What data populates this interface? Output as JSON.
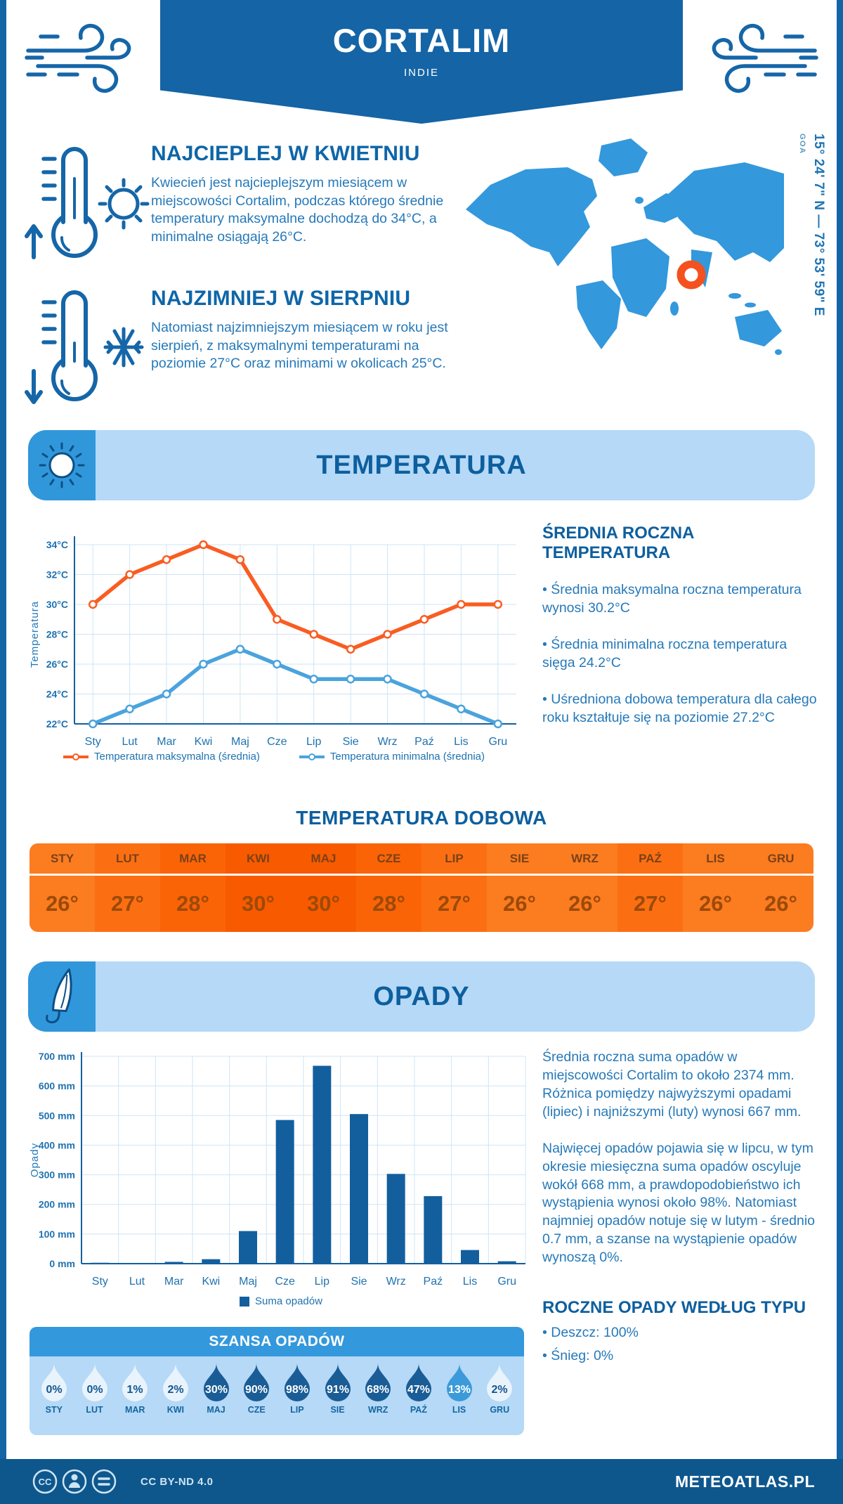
{
  "header": {
    "title": "CORTALIM",
    "subtitle": "INDIE"
  },
  "location": {
    "coordinates": "15° 24' 7\" N — 73° 53' 59\" E",
    "region": "GOA"
  },
  "palette": {
    "primary_blue": "#1464a6",
    "medium_blue": "#3398dc",
    "light_blue_panel": "#b5d9f7",
    "heading_blue": "#0e66a8",
    "body_blue": "#2579b9",
    "accent_orange": "#f95d22",
    "bar_blue": "#135f9e",
    "footer_blue": "#0e578d"
  },
  "icons": [
    "wind-icon",
    "thermometer-up-icon",
    "sun-icon",
    "thermometer-down-icon",
    "snowflake-icon",
    "umbrella-icon",
    "location-marker-icon",
    "cc-icon",
    "person-icon",
    "equals-icon"
  ],
  "highlights": [
    {
      "title": "NAJCIEPLEJ W KWIETNIU",
      "text": "Kwiecień jest najcieplejszym miesiącem w miejscowości Cortalim, podczas którego średnie temperatury maksymalne dochodzą do 34°C, a minimalne osiągają 26°C."
    },
    {
      "title": "NAJZIMNIEJ W SIERPNIU",
      "text": "Natomiast najzimniejszym miesiącem w roku jest sierpień, z maksymalnymi temperaturami na poziomie 27°C oraz minimami w okolicach 25°C."
    }
  ],
  "temperature": {
    "section_title": "TEMPERATURA",
    "summary_title": "ŚREDNIA ROCZNA TEMPERATURA",
    "bullets": [
      "• Średnia maksymalna roczna temperatura wynosi 30.2°C",
      "• Średnia minimalna roczna temperatura sięga 24.2°C",
      "• Uśredniona dobowa temperatura dla całego roku kształtuje się na poziomie 27.2°C"
    ],
    "daily_title": "TEMPERATURA DOBOWA",
    "daily_table": {
      "months": [
        "STY",
        "LUT",
        "MAR",
        "KWI",
        "MAJ",
        "CZE",
        "LIP",
        "SIE",
        "WRZ",
        "PAŹ",
        "LIS",
        "GRU"
      ],
      "values": [
        "26°",
        "27°",
        "28°",
        "30°",
        "30°",
        "28°",
        "27°",
        "26°",
        "26°",
        "27°",
        "26°",
        "26°"
      ],
      "cell_colors": [
        "#fc7c20",
        "#fb6f12",
        "#fa6407",
        "#f85a00",
        "#f85a00",
        "#fa6407",
        "#fb6f12",
        "#fc7c20",
        "#fc7c20",
        "#fb6f12",
        "#fc7c20",
        "#fc7c20"
      ]
    }
  },
  "precipitation": {
    "section_title": "OPADY",
    "paragraphs": [
      "Średnia roczna suma opadów w miejscowości Cortalim to około 2374 mm. Różnica pomiędzy najwyższymi opadami (lipiec) i najniższymi (luty) wynosi 667 mm.",
      "Najwięcej opadów pojawia się w lipcu, w tym okresie miesięczna suma opadów oscyluje wokół 668 mm, a prawdopodobieństwo ich wystąpienia wynosi około 98%. Natomiast najmniej opadów notuje się w lutym - średnio 0.7 mm, a szanse na wystąpienie opadów wynoszą 0%."
    ],
    "type_title": "ROCZNE OPADY WEDŁUG TYPU",
    "type_bullets": [
      "• Deszcz: 100%",
      "• Śnieg: 0%"
    ],
    "chance": {
      "title": "SZANSA OPADÓW",
      "months": [
        "STY",
        "LUT",
        "MAR",
        "KWI",
        "MAJ",
        "CZE",
        "LIP",
        "SIE",
        "WRZ",
        "PAŹ",
        "LIS",
        "GRU"
      ],
      "values": [
        "0%",
        "0%",
        "1%",
        "2%",
        "30%",
        "90%",
        "98%",
        "91%",
        "68%",
        "47%",
        "13%",
        "2%"
      ],
      "levels": [
        "light",
        "light",
        "light",
        "light",
        "dark",
        "dark",
        "dark",
        "dark",
        "dark",
        "dark",
        "medium",
        "light"
      ],
      "colors": {
        "light": "#e9f3fc",
        "dark": "#1a5c95",
        "medium": "#3b9ad9"
      }
    }
  },
  "chart_data": [
    {
      "type": "line",
      "title": "TEMPERATURA",
      "x": [
        "Sty",
        "Lut",
        "Mar",
        "Kwi",
        "Maj",
        "Cze",
        "Lip",
        "Sie",
        "Wrz",
        "Paź",
        "Lis",
        "Gru"
      ],
      "series": [
        {
          "name": "Temperatura maksymalna (średnia)",
          "color": "#f95d22",
          "values": [
            30,
            32,
            33,
            34,
            33,
            29,
            28,
            27,
            28,
            29,
            30,
            30
          ]
        },
        {
          "name": "Temperatura minimalna (średnia)",
          "color": "#4aa3dd",
          "values": [
            22,
            23,
            24,
            26,
            27,
            26,
            25,
            25,
            25,
            24,
            23,
            22
          ]
        }
      ],
      "xlabel": "",
      "ylabel": "Temperatura",
      "ylim": [
        22,
        34
      ],
      "ytick_step": 2,
      "ytick_suffix": "°C",
      "grid": true,
      "legend_position": "bottom"
    },
    {
      "type": "bar",
      "title": "OPADY",
      "categories": [
        "Sty",
        "Lut",
        "Mar",
        "Kwi",
        "Maj",
        "Cze",
        "Lip",
        "Sie",
        "Wrz",
        "Paź",
        "Lis",
        "Gru"
      ],
      "series": [
        {
          "name": "Suma opadów",
          "color": "#135f9e",
          "values": [
            3,
            0.7,
            6,
            15,
            110,
            485,
            668,
            505,
            303,
            228,
            46,
            8
          ]
        }
      ],
      "xlabel": "",
      "ylabel": "Opady",
      "ylim": [
        0,
        700
      ],
      "ytick_step": 100,
      "ytick_suffix": " mm",
      "grid": true,
      "legend_position": "bottom"
    }
  ],
  "footer": {
    "license": "CC BY-ND 4.0",
    "site": "METEOATLAS.PL"
  }
}
